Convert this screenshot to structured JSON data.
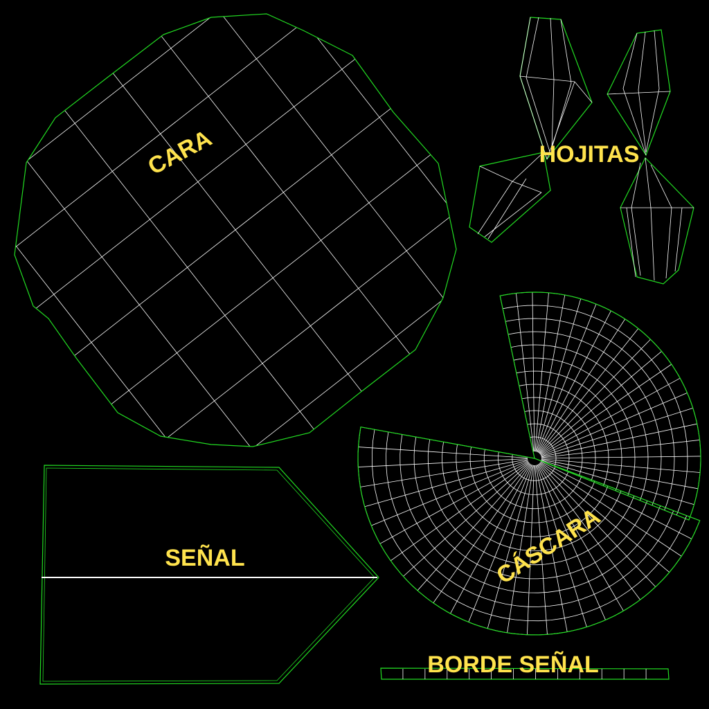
{
  "labels": {
    "face": "CARA",
    "leaves": "HOJITAS",
    "peel": "CÁSCARA",
    "sign": "SEÑAL",
    "sign_edge": "BORDE SEÑAL"
  },
  "colors": {
    "background": "#000000",
    "island_border": "#22dd22",
    "wireframe": "#ffffff",
    "label": "#ffe34d"
  }
}
